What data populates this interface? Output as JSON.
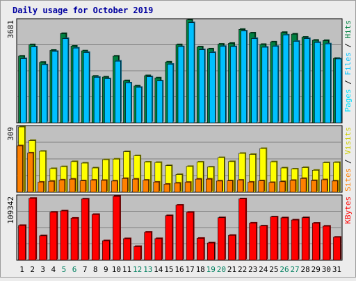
{
  "chart_data": {
    "type": "bar",
    "title": "Daily usage for October 2019",
    "days": [
      1,
      2,
      3,
      4,
      5,
      6,
      7,
      8,
      9,
      10,
      11,
      12,
      13,
      14,
      15,
      16,
      17,
      18,
      19,
      20,
      21,
      22,
      23,
      24,
      25,
      26,
      27,
      28,
      29,
      30,
      31
    ],
    "weekend_days": [
      5,
      6,
      12,
      13,
      19,
      20,
      26,
      27
    ],
    "panels": {
      "pages_files_hits": {
        "ymax": 3681,
        "ymax_label": "3681",
        "label_parts": [
          "Pages",
          " / ",
          "Files",
          " / ",
          "Hits"
        ],
        "series": [
          {
            "name": "Hits",
            "color": "#008040",
            "values": [
              2390,
              2800,
              2170,
              2600,
              3200,
              2750,
              2580,
              1670,
              1640,
              2390,
              1510,
              1320,
              1690,
              1610,
              2180,
              2800,
              3690,
              2720,
              2650,
              2820,
              2850,
              3350,
              3220,
              2810,
              2900,
              3240,
              3180,
              3070,
              2960,
              2950,
              2310
            ]
          },
          {
            "name": "Files",
            "color": "#00c0ff",
            "values": [
              2300,
              2720,
              2080,
              2560,
              3020,
              2680,
              2520,
              1630,
              1580,
              2210,
              1430,
              1270,
              1650,
              1500,
              2100,
              2730,
              3590,
              2620,
              2520,
              2740,
              2730,
              3290,
              3020,
              2710,
              2740,
              3150,
              2920,
              3020,
              2880,
              2830,
              2290
            ]
          },
          {
            "name": "Pages",
            "color": "#00e0ff",
            "values": []
          }
        ]
      },
      "sites_visits": {
        "ymax": 309,
        "ymax_label": "309",
        "label_parts": [
          "Sites",
          " / ",
          "Visits"
        ],
        "series": [
          {
            "name": "Visits",
            "color": "#ffff00",
            "values": [
              309,
              245,
              194,
              112,
              121,
              145,
              138,
              115,
              154,
              157,
              192,
              173,
              143,
              141,
              126,
              84,
              122,
              143,
              119,
              164,
              145,
              184,
              179,
              207,
              144,
              115,
              110,
              117,
              104,
              140,
              141
            ]
          },
          {
            "name": "Sites",
            "color": "#ff8000",
            "values": [
              220,
              186,
              48,
              52,
              58,
              62,
              54,
              57,
              56,
              53,
              65,
              62,
              57,
              48,
              38,
              43,
              47,
              62,
              62,
              53,
              54,
              57,
              48,
              54,
              46,
              50,
              56,
              65,
              55,
              59,
              53
            ]
          }
        ]
      },
      "kbytes": {
        "ymax": 109342,
        "ymax_label": "109342",
        "label_parts": [
          "KBytes"
        ],
        "series": [
          {
            "name": "KBytes",
            "color": "#ff0000",
            "values": [
              59500,
              106000,
              41800,
              82200,
              84400,
              72000,
              104800,
              78400,
              33300,
              109300,
              36900,
              23500,
              48000,
              37000,
              76300,
              94400,
              82000,
              37500,
              29600,
              72800,
              42600,
              105100,
              63700,
              58600,
              74100,
              72600,
              68900,
              72800,
              63500,
              58300,
              39400
            ]
          }
        ]
      }
    }
  }
}
